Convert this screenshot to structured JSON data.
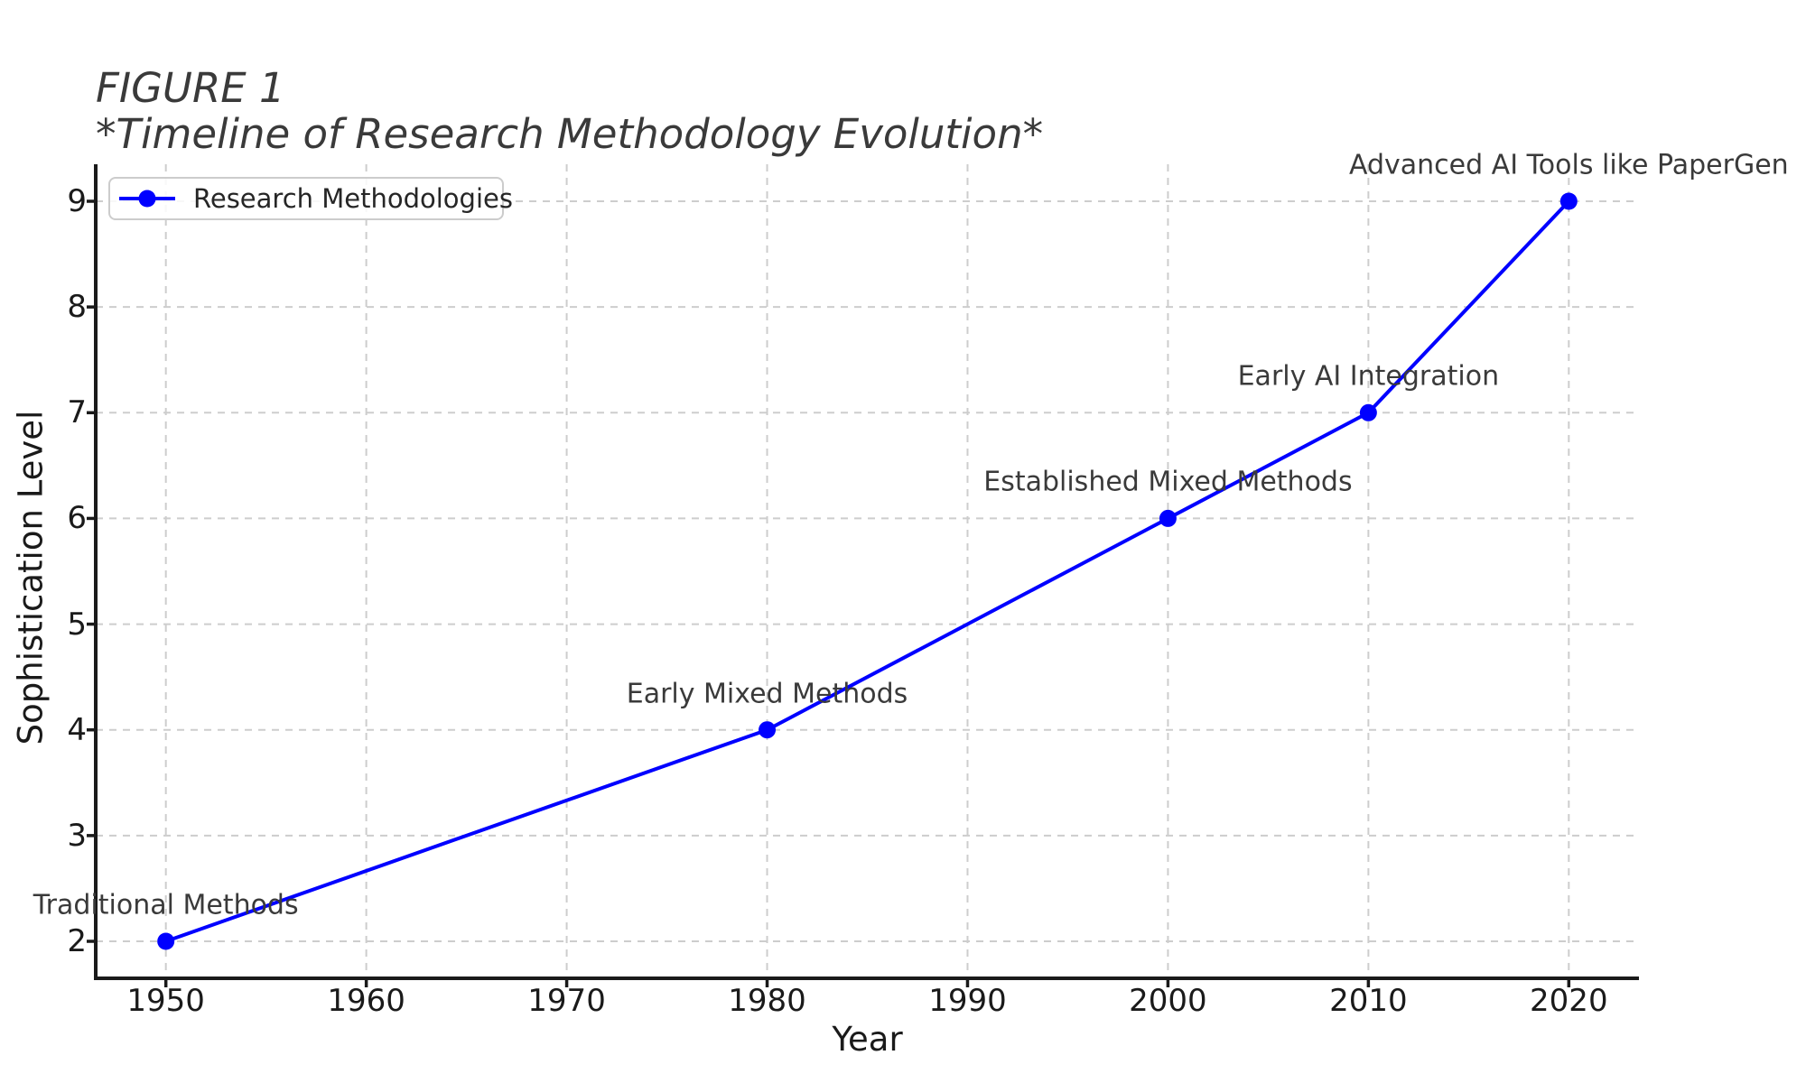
{
  "figure": {
    "title_line1": "FIGURE 1",
    "title_line2": "*Timeline of Research Methodology Evolution*"
  },
  "chart_data": {
    "type": "line",
    "title": "FIGURE 1 *Timeline of Research Methodology Evolution*",
    "xlabel": "Year",
    "ylabel": "Sophistication Level",
    "xlim": [
      1946.5,
      2023.5
    ],
    "ylim": [
      1.65,
      9.35
    ],
    "x_ticks": [
      1950,
      1960,
      1970,
      1980,
      1990,
      2000,
      2010,
      2020
    ],
    "y_ticks": [
      2,
      3,
      4,
      5,
      6,
      7,
      8,
      9
    ],
    "grid": true,
    "grid_style": "dashed",
    "legend_position": "upper left",
    "series": [
      {
        "name": "Research Methodologies",
        "x": [
          1950,
          1980,
          2000,
          2010,
          2020
        ],
        "y": [
          2,
          4,
          6,
          7,
          9
        ],
        "marker": "circle",
        "point_labels": [
          "Traditional Methods",
          "Early Mixed Methods",
          "Established Mixed Methods",
          "Early AI Integration",
          "Advanced AI Tools like PaperGen"
        ]
      }
    ],
    "colors": {
      "line": "#0000ff",
      "grid": "#cdcdcd",
      "axis": "#1a1a1a",
      "tick_label": "#1a1a1a",
      "annotation": "#3a3a3a",
      "title": "#3a3a3a",
      "legend_border": "#cccccc"
    }
  }
}
